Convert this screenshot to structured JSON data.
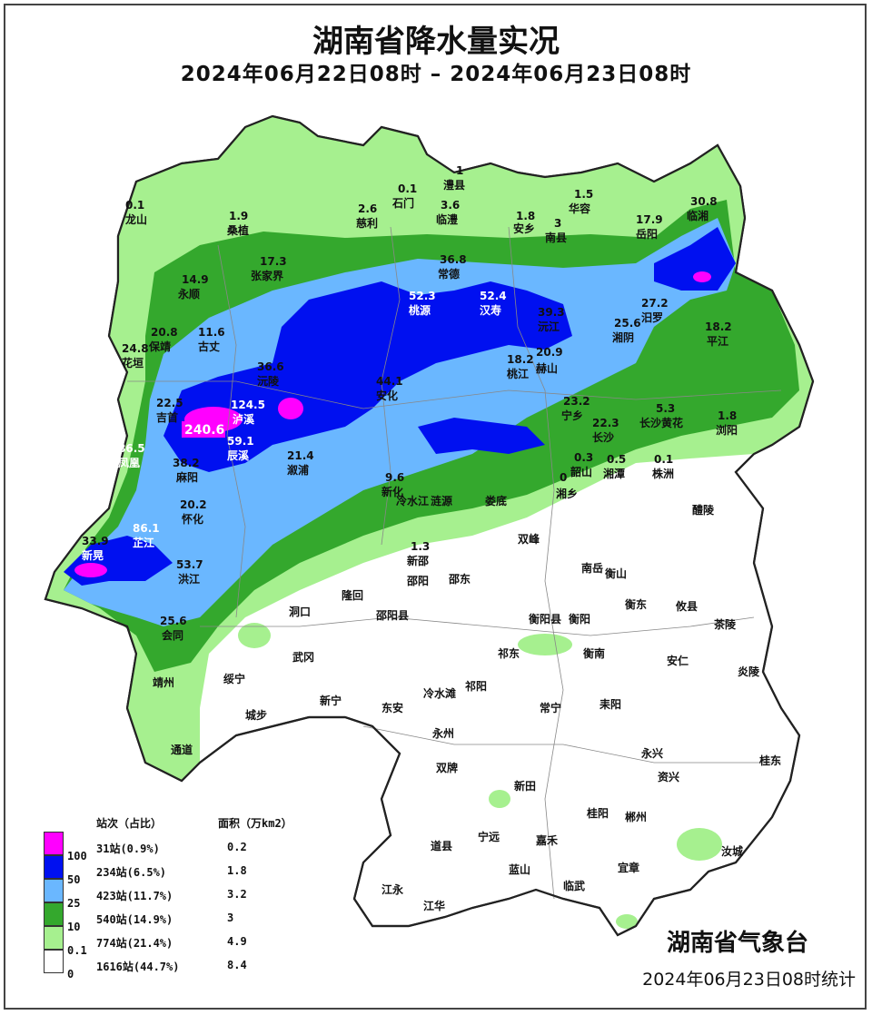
{
  "title": "湖南省降水量实况",
  "subtitle": "2024年06月22日08时 – 2024年06月23日08时",
  "agency": "湖南省气象台",
  "footer": "2024年06月23日08时统计",
  "legend": {
    "header_stations": "站次（占比）",
    "header_area": "面积（万km2）",
    "thresholds": [
      "100",
      "50",
      "25",
      "10",
      "0.1",
      "0"
    ],
    "rows": [
      {
        "color": "#ff00ff",
        "stations": "31站(0.9%)",
        "area": "0.2"
      },
      {
        "color": "#0000ff",
        "stations": "234站(6.5%)",
        "area": "1.8"
      },
      {
        "color": "#66b3ff",
        "stations": "423站(11.7%)",
        "area": "3.2"
      },
      {
        "color": "#33a02c",
        "stations": "540站(14.9%)",
        "area": "3"
      },
      {
        "color": "#99ee88",
        "stations": "774站(21.4%)",
        "area": "4.9"
      },
      {
        "color": "#ffffff",
        "stations": "1616站(44.7%)",
        "area": "8.4"
      }
    ]
  },
  "stations": [
    {
      "name": "龙山",
      "value": "0.1"
    },
    {
      "name": "桑植",
      "value": "1.9"
    },
    {
      "name": "慈利",
      "value": "2.6"
    },
    {
      "name": "石门",
      "value": "0.1"
    },
    {
      "name": "澧县",
      "value": "1"
    },
    {
      "name": "临澧",
      "value": "3.6"
    },
    {
      "name": "安乡",
      "value": "1.8"
    },
    {
      "name": "华容",
      "value": "1.5"
    },
    {
      "name": "南县",
      "value": "3"
    },
    {
      "name": "岳阳",
      "value": "17.9"
    },
    {
      "name": "临湘",
      "value": "30.8"
    },
    {
      "name": "张家界",
      "value": "17.3"
    },
    {
      "name": "常德",
      "value": "36.8"
    },
    {
      "name": "永顺",
      "value": "14.9"
    },
    {
      "name": "桃源",
      "value": "52.3"
    },
    {
      "name": "汉寿",
      "value": "52.4"
    },
    {
      "name": "沅江",
      "value": "39.3"
    },
    {
      "name": "汨罗",
      "value": "27.2"
    },
    {
      "name": "湘阴",
      "value": "25.6"
    },
    {
      "name": "平江",
      "value": "18.2"
    },
    {
      "name": "保靖",
      "value": "20.8"
    },
    {
      "name": "古丈",
      "value": "11.6"
    },
    {
      "name": "花垣",
      "value": "24.8"
    },
    {
      "name": "沅陵",
      "value": "36.6"
    },
    {
      "name": "桃江",
      "value": "18.2"
    },
    {
      "name": "赫山",
      "value": "20.9"
    },
    {
      "name": "安化",
      "value": "44.1"
    },
    {
      "name": "吉首",
      "value": "22.5"
    },
    {
      "name": "泸溪",
      "value": "124.5"
    },
    {
      "name": "宁乡",
      "value": "23.2"
    },
    {
      "name": "长沙",
      "value": "22.3"
    },
    {
      "name": "长沙黄花",
      "value": "5.3"
    },
    {
      "name": "浏阳",
      "value": "1.8"
    },
    {
      "name": "凤凰",
      "value": "86.5"
    },
    {
      "name": "麻阳",
      "value": "38.2"
    },
    {
      "name": "辰溪",
      "value": "59.1"
    },
    {
      "name": "溆浦",
      "value": "21.4"
    },
    {
      "name": "韶山",
      "value": "0.3"
    },
    {
      "name": "湘潭",
      "value": "0.5"
    },
    {
      "name": "株洲",
      "value": "0.1"
    },
    {
      "name": "新化",
      "value": "9.6"
    },
    {
      "name": "湘乡",
      "value": "0"
    },
    {
      "name": "怀化",
      "value": "20.2"
    },
    {
      "name": "新晃",
      "value": "33.9"
    },
    {
      "name": "芷江",
      "value": "86.1"
    },
    {
      "name": "洪江",
      "value": "53.7"
    },
    {
      "name": "新邵",
      "value": "1.3"
    },
    {
      "name": "会同",
      "value": "25.6"
    }
  ],
  "max_marker": "240.6",
  "places": [
    "冷水江",
    "涟源",
    "娄底",
    "双峰",
    "醴陵",
    "邵阳",
    "邵东",
    "南岳",
    "衡山",
    "洞口",
    "隆回",
    "邵阳县",
    "衡阳县",
    "衡阳",
    "衡东",
    "攸县",
    "武冈",
    "祁东",
    "衡南",
    "安仁",
    "茶陵",
    "绥宁",
    "新宁",
    "东安",
    "冷水滩",
    "祁阳",
    "常宁",
    "耒阳",
    "炎陵",
    "城步",
    "靖州",
    "永州",
    "通道",
    "双牌",
    "新田",
    "永兴",
    "资兴",
    "桂东",
    "道县",
    "宁远",
    "嘉禾",
    "桂阳",
    "郴州",
    "汝城",
    "江永",
    "蓝山",
    "临武",
    "宜章",
    "江华"
  ]
}
